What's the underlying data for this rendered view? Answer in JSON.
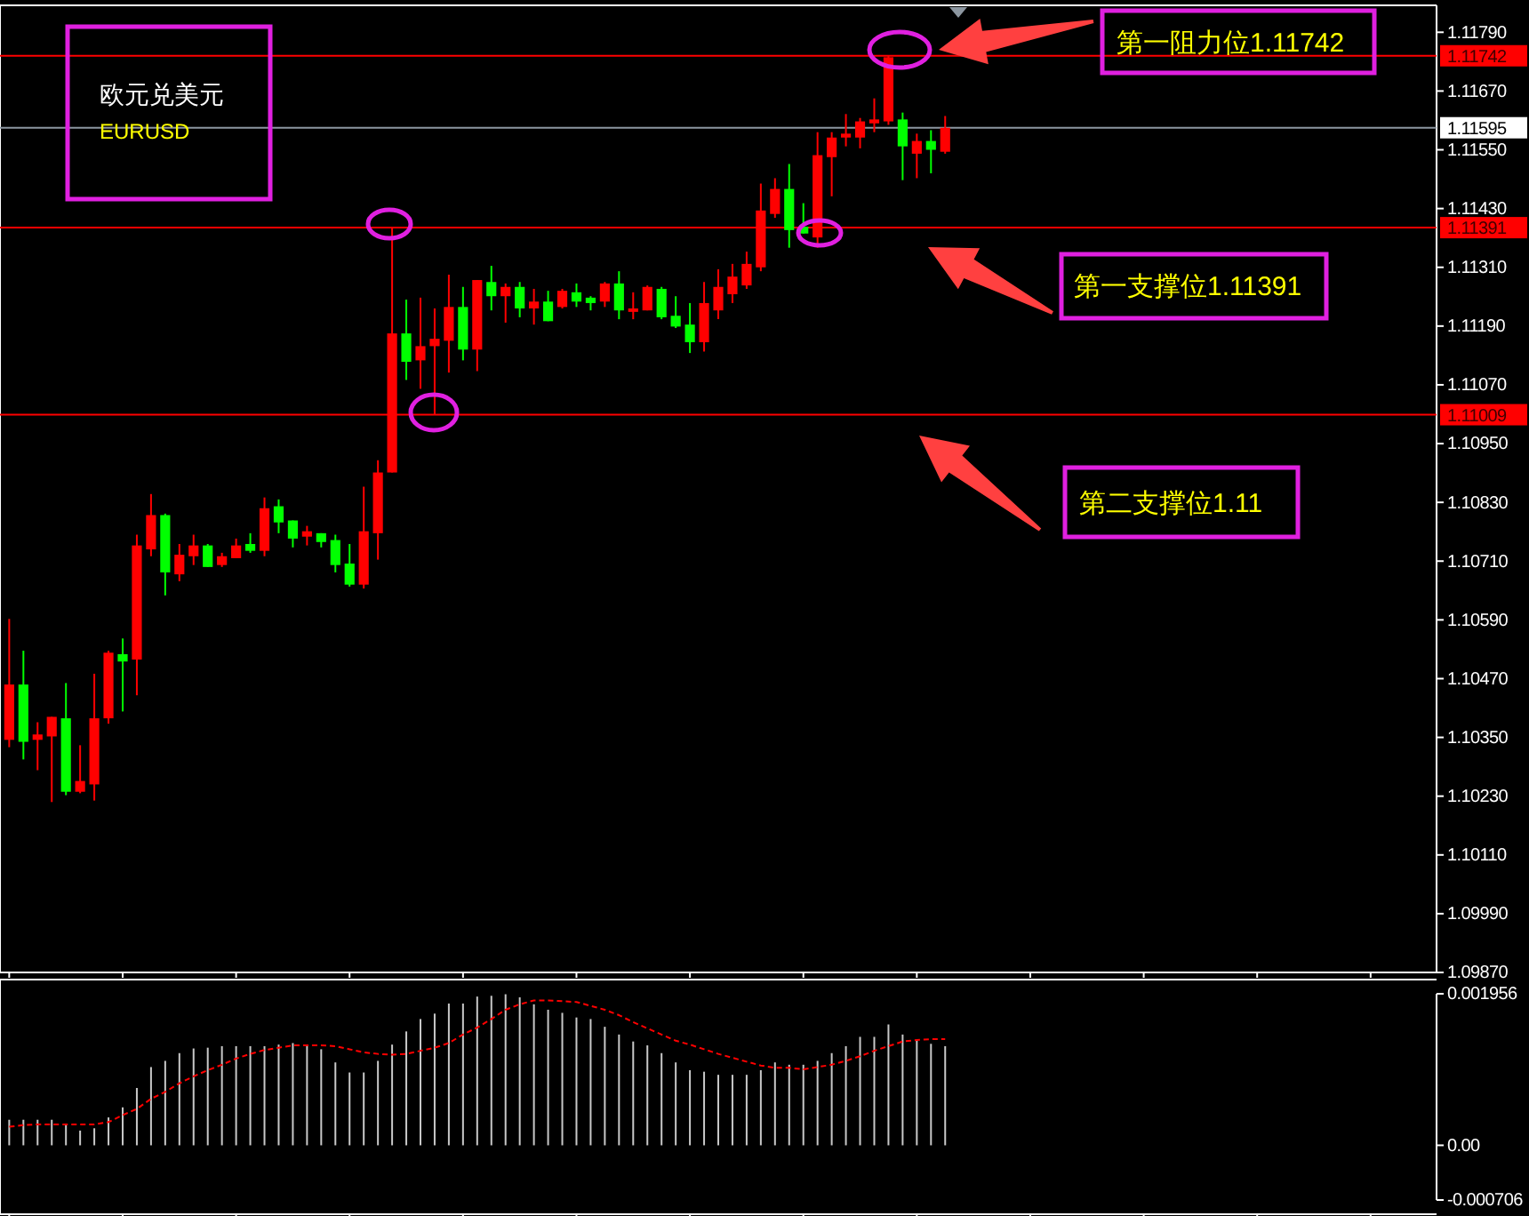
{
  "chart_data": [
    {
      "type": "candlestick",
      "tick_labels": "y",
      "categories": [
        null,
        null,
        null,
        null,
        null,
        null,
        null,
        null,
        null,
        null,
        null,
        null,
        null,
        null,
        null,
        null,
        null,
        null,
        null,
        null,
        null,
        null,
        null,
        null,
        null,
        null,
        null,
        null,
        null,
        null,
        null,
        null,
        null,
        null,
        null,
        null,
        null,
        null,
        null,
        null,
        null,
        null,
        null,
        null,
        null,
        null,
        null,
        null,
        null,
        null,
        null,
        null,
        null,
        null,
        null,
        null,
        null,
        null,
        null,
        null,
        null,
        null,
        null,
        null,
        null,
        null,
        null,
        null,
        null,
        null,
        null,
        null,
        null,
        null,
        null,
        null,
        null,
        null,
        null,
        null,
        null,
        null,
        null,
        null,
        null,
        null,
        null,
        null,
        null,
        null,
        null,
        null,
        null,
        null,
        null,
        null,
        null,
        null,
        null,
        null,
        null
      ],
      "ohlc": [
        [
          1.10345,
          1.10592,
          1.1033,
          1.10458
        ],
        [
          1.10458,
          1.10527,
          1.10305,
          1.10341
        ],
        [
          1.10345,
          1.10381,
          1.10283,
          1.10356
        ],
        [
          1.10352,
          1.10392,
          1.10218,
          1.10392
        ],
        [
          1.10389,
          1.10461,
          1.10232,
          1.10239
        ],
        [
          1.10239,
          1.10334,
          1.10236,
          1.10261
        ],
        [
          1.10254,
          1.1048,
          1.10221,
          1.10389
        ],
        [
          1.10389,
          1.10527,
          1.10378,
          1.10523
        ],
        [
          1.1052,
          1.10552,
          1.10403,
          1.10505
        ],
        [
          1.10509,
          1.10764,
          1.10436,
          1.10742
        ],
        [
          1.10734,
          1.10847,
          1.1072,
          1.10804
        ],
        [
          1.10804,
          1.10807,
          1.1064,
          1.10687
        ],
        [
          1.10683,
          1.10745,
          1.10669,
          1.10723
        ],
        [
          1.1072,
          1.10764,
          1.10702,
          1.10742
        ],
        [
          1.10742,
          1.10745,
          1.10698,
          1.10698
        ],
        [
          1.10702,
          1.10727,
          1.10698,
          1.1072
        ],
        [
          1.10716,
          1.10756,
          1.10716,
          1.10742
        ],
        [
          1.10745,
          1.10767,
          1.10727,
          1.10731
        ],
        [
          1.10731,
          1.1084,
          1.1072,
          1.10818
        ],
        [
          1.10822,
          1.10836,
          1.10767,
          1.10789
        ],
        [
          1.10793,
          1.10793,
          1.10738,
          1.10756
        ],
        [
          1.1076,
          1.10782,
          1.10742,
          1.10771
        ],
        [
          1.10767,
          1.10767,
          1.10738,
          1.10749
        ],
        [
          1.10753,
          1.10764,
          1.10687,
          1.10702
        ],
        [
          1.10705,
          1.10745,
          1.10658,
          1.10662
        ],
        [
          1.10662,
          1.10862,
          1.10654,
          1.10771
        ],
        [
          1.10767,
          1.10916,
          1.10713,
          1.10891
        ],
        [
          1.10891,
          1.1139,
          1.10891,
          1.11175
        ],
        [
          1.11175,
          1.11244,
          1.1108,
          1.11117
        ],
        [
          1.1112,
          1.11248,
          1.11062,
          1.11149
        ],
        [
          1.11149,
          1.11226,
          1.11009,
          1.11164
        ],
        [
          1.1116,
          1.11295,
          1.11095,
          1.11229
        ],
        [
          1.11229,
          1.1127,
          1.1112,
          1.11142
        ],
        [
          1.11142,
          1.11284,
          1.11098,
          1.11284
        ],
        [
          1.1128,
          1.11313,
          1.11222,
          1.11251
        ],
        [
          1.11251,
          1.11277,
          1.11197,
          1.1127
        ],
        [
          1.1127,
          1.1128,
          1.11208,
          1.11226
        ],
        [
          1.11226,
          1.11266,
          1.11193,
          1.1124
        ],
        [
          1.1124,
          1.11262,
          1.112,
          1.112
        ],
        [
          1.11229,
          1.11266,
          1.11226,
          1.11262
        ],
        [
          1.11259,
          1.11277,
          1.11229,
          1.1124
        ],
        [
          1.11248,
          1.11251,
          1.11222,
          1.11237
        ],
        [
          1.1124,
          1.1128,
          1.11229,
          1.11277
        ],
        [
          1.11277,
          1.11302,
          1.11204,
          1.11222
        ],
        [
          1.11219,
          1.11259,
          1.11204,
          1.11226
        ],
        [
          1.11222,
          1.11273,
          1.11222,
          1.1127
        ],
        [
          1.11266,
          1.1127,
          1.11204,
          1.11208
        ],
        [
          1.11211,
          1.11251,
          1.11186,
          1.11189
        ],
        [
          1.11193,
          1.11237,
          1.11135,
          1.11157
        ],
        [
          1.11157,
          1.1128,
          1.11138,
          1.11237
        ],
        [
          1.11222,
          1.11306,
          1.11204,
          1.1127
        ],
        [
          1.11255,
          1.11317,
          1.11237,
          1.11291
        ],
        [
          1.11273,
          1.11342,
          1.11266,
          1.11317
        ],
        [
          1.1131,
          1.11481,
          1.11302,
          1.11426
        ],
        [
          1.11419,
          1.11492,
          1.11411,
          1.1147
        ],
        [
          1.1147,
          1.11521,
          1.1135,
          1.11386
        ],
        [
          1.11393,
          1.11441,
          1.11379,
          1.11379
        ],
        [
          1.11371,
          1.11586,
          1.1135,
          1.11539
        ],
        [
          1.11535,
          1.11586,
          1.11455,
          1.11575
        ],
        [
          1.11575,
          1.11623,
          1.11557,
          1.11583
        ],
        [
          1.11575,
          1.11615,
          1.11553,
          1.11608
        ],
        [
          1.11604,
          1.11655,
          1.11586,
          1.11612
        ],
        [
          1.11608,
          1.11742,
          1.11601,
          1.11739
        ],
        [
          1.11612,
          1.11626,
          1.11488,
          1.11557
        ],
        [
          1.11542,
          1.11583,
          1.11492,
          1.11568
        ],
        [
          1.11568,
          1.1159,
          1.11502,
          1.1155
        ],
        [
          1.11546,
          1.11619,
          1.11542,
          1.11595
        ],
        null,
        null,
        null,
        null,
        null,
        null,
        null,
        null,
        null,
        null,
        null,
        null,
        null,
        null,
        null,
        null,
        null,
        null,
        null,
        null,
        null,
        null,
        null,
        null,
        null,
        null,
        null,
        null,
        null,
        null,
        null,
        null,
        null,
        null
      ],
      "colors": [
        "#ff0000",
        "#00ff00",
        "#ff0000",
        "#ff0000",
        "#00ff00",
        "#ff0000",
        "#ff0000",
        "#ff0000",
        "#00ff00",
        "#ff0000",
        "#ff0000",
        "#00ff00",
        "#ff0000",
        "#ff0000",
        "#00ff00",
        "#ff0000",
        "#ff0000",
        "#00ff00",
        "#ff0000",
        "#00ff00",
        "#00ff00",
        "#ff0000",
        "#00ff00",
        "#00ff00",
        "#00ff00",
        "#ff0000",
        "#ff0000",
        "#ff0000",
        "#00ff00",
        "#ff0000",
        "#ff0000",
        "#ff0000",
        "#00ff00",
        "#ff0000",
        "#00ff00",
        "#ff0000",
        "#00ff00",
        "#ff0000",
        "#00ff00",
        "#ff0000",
        "#00ff00",
        "#00ff00",
        "#ff0000",
        "#00ff00",
        "#ff0000",
        "#ff0000",
        "#00ff00",
        "#00ff00",
        "#00ff00",
        "#ff0000",
        "#ff0000",
        "#ff0000",
        "#ff0000",
        "#ff0000",
        "#ff0000",
        "#00ff00",
        "#00ff00",
        "#ff0000",
        "#ff0000",
        "#ff0000",
        "#ff0000",
        "#ff0000",
        "#ff0000",
        "#00ff00",
        "#ff0000",
        "#00ff00",
        "#ff0000",
        null,
        null,
        null,
        null,
        null,
        null,
        null,
        null,
        null,
        null,
        null,
        null,
        null,
        null,
        null,
        null,
        null,
        null,
        null,
        null,
        null,
        null,
        null,
        null,
        null,
        null,
        null,
        null,
        null,
        null,
        null,
        null,
        null,
        null
      ],
      "ylim": [
        1.0987,
        1.11845
      ],
      "yticks": [
        {
          "value": 1.0987,
          "label": "1.09870"
        },
        {
          "value": 1.0999,
          "label": "1.09990"
        },
        {
          "value": 1.1011,
          "label": "1.10110"
        },
        {
          "value": 1.1023,
          "label": "1.10230"
        },
        {
          "value": 1.1035,
          "label": "1.10350"
        },
        {
          "value": 1.1047,
          "label": "1.10470"
        },
        {
          "value": 1.1059,
          "label": "1.10590"
        },
        {
          "value": 1.1071,
          "label": "1.10710"
        },
        {
          "value": 1.1083,
          "label": "1.10830"
        },
        {
          "value": 1.1095,
          "label": "1.10950"
        },
        {
          "value": 1.1107,
          "label": "1.11070"
        },
        {
          "value": 1.1119,
          "label": "1.11190"
        },
        {
          "value": 1.1131,
          "label": "1.11310"
        },
        {
          "value": 1.1143,
          "label": "1.11430"
        },
        {
          "value": 1.1155,
          "label": "1.11550"
        },
        {
          "value": 1.1167,
          "label": "1.11670"
        },
        {
          "value": 1.1179,
          "label": "1.11790"
        }
      ],
      "ref_lines": [
        {
          "axis": "y",
          "value": 1.11742,
          "label": "1.11742",
          "color": "#ff0000"
        },
        {
          "axis": "y",
          "value": 1.11595,
          "label": "1.11595",
          "color": "#8c96a0"
        },
        {
          "axis": "y",
          "value": 1.11391,
          "label": "1.11391",
          "color": "#ff0000"
        },
        {
          "axis": "y",
          "value": 1.11009,
          "label": "1.11009",
          "color": "#ff0000"
        }
      ],
      "annotations": [
        "欧元兑美元",
        "EURUSD",
        "第一阻力位1.11742",
        "第一支撑位1.11391",
        "第二支撑位1.11"
      ]
    },
    {
      "type": "bar",
      "tick_labels": "y",
      "categories": [
        null,
        null,
        null,
        null,
        null,
        null,
        null,
        null,
        null,
        null,
        null,
        null,
        null,
        null,
        null,
        null,
        null,
        null,
        null,
        null,
        null,
        null,
        null,
        null,
        null,
        null,
        null,
        null,
        null,
        null,
        null,
        null,
        null,
        null,
        null,
        null,
        null,
        null,
        null,
        null,
        null,
        null,
        null,
        null,
        null,
        null,
        null,
        null,
        null,
        null,
        null,
        null,
        null,
        null,
        null,
        null,
        null,
        null,
        null,
        null,
        null,
        null,
        null,
        null,
        null,
        null,
        null,
        null,
        null,
        null,
        null,
        null,
        null,
        null,
        null,
        null,
        null,
        null,
        null,
        null,
        null,
        null,
        null,
        null,
        null,
        null,
        null,
        null,
        null,
        null,
        null,
        null,
        null,
        null,
        null,
        null,
        null,
        null,
        null,
        null,
        null
      ],
      "series": [
        {
          "type": "bar",
          "color": "#c8c8c8",
          "values": [
            0.00033,
            0.00033,
            0.00033,
            0.00033,
            0.00027,
            0.00019,
            0.00022,
            0.00036,
            0.00049,
            0.00074,
            0.00101,
            0.00109,
            0.00119,
            0.00125,
            0.00126,
            0.00128,
            0.00128,
            0.00128,
            0.00128,
            0.0013,
            0.00132,
            0.0013,
            0.00124,
            0.00107,
            0.00094,
            0.00094,
            0.00109,
            0.0013,
            0.00147,
            0.00163,
            0.0017,
            0.00183,
            0.00183,
            0.00192,
            0.00193,
            0.00195,
            0.00191,
            0.00182,
            0.00175,
            0.00171,
            0.00165,
            0.00163,
            0.00153,
            0.00143,
            0.00134,
            0.00129,
            0.00119,
            0.00107,
            0.00097,
            0.00095,
            0.00091,
            0.00091,
            0.00091,
            0.00097,
            0.00107,
            0.00104,
            0.00104,
            0.00109,
            0.00119,
            0.00128,
            0.0014,
            0.0014,
            0.00156,
            0.00143,
            0.00136,
            0.00131,
            0.00128,
            null,
            null,
            null,
            null,
            null,
            null,
            null,
            null,
            null,
            null,
            null,
            null,
            null,
            null,
            null,
            null,
            null,
            null,
            null,
            null,
            null,
            null,
            null,
            null,
            null,
            null,
            null,
            null,
            null,
            null,
            null,
            null,
            null,
            null
          ]
        },
        {
          "type": "line",
          "color": "#ff0000",
          "line_style": "dashed",
          "values": [
            0.00024,
            0.00026,
            0.00027,
            0.00027,
            0.00027,
            0.00027,
            0.00027,
            0.0003,
            0.00039,
            0.00047,
            0.0006,
            0.00069,
            0.0008,
            0.00089,
            0.00097,
            0.00104,
            0.00112,
            0.00118,
            0.00123,
            0.00126,
            0.00129,
            0.00129,
            0.00129,
            0.00128,
            0.00124,
            0.0012,
            0.00118,
            0.00117,
            0.00118,
            0.00122,
            0.00126,
            0.00132,
            0.00143,
            0.00152,
            0.00163,
            0.00175,
            0.00182,
            0.00187,
            0.00187,
            0.00186,
            0.00185,
            0.0018,
            0.00175,
            0.00168,
            0.00159,
            0.00151,
            0.00143,
            0.00135,
            0.0013,
            0.00124,
            0.00118,
            0.00113,
            0.00108,
            0.00103,
            0.001,
            0.001,
            0.00098,
            0.00101,
            0.00104,
            0.00109,
            0.00115,
            0.00122,
            0.00128,
            0.00134,
            0.00136,
            0.00137,
            0.00137,
            null,
            null,
            null,
            null,
            null,
            null,
            null,
            null,
            null,
            null,
            null,
            null,
            null,
            null,
            null,
            null,
            null,
            null,
            null,
            null,
            null,
            null,
            null,
            null,
            null,
            null,
            null,
            null,
            null,
            null,
            null,
            null,
            null,
            null
          ]
        }
      ],
      "ylim": [
        -0.000706,
        0.001956
      ],
      "yticks": [
        {
          "value": -0.000706,
          "label": "-0.000706"
        },
        {
          "value": 0,
          "label": "0.00"
        },
        {
          "value": 0.001956,
          "label": "0.001956"
        }
      ]
    }
  ]
}
